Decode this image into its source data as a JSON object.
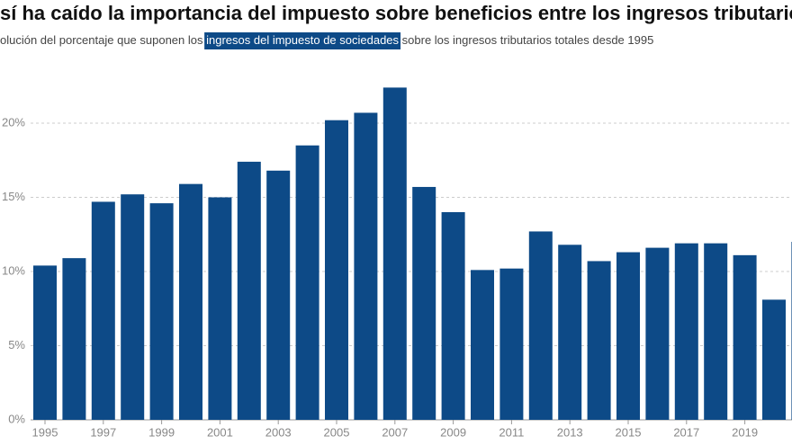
{
  "chart_data": {
    "type": "bar",
    "title": "sí ha caído la importancia del impuesto sobre beneficios entre los ingresos tributarios",
    "subtitle": [
      "olución del porcentaje que suponen los ",
      "ingresos del impuesto de sociedades",
      " sobre los ingresos tributarios totales desde 1995"
    ],
    "categories": [
      "1995",
      null,
      "1997",
      null,
      "1999",
      null,
      "2001",
      null,
      "2003",
      null,
      "2005",
      null,
      "2007",
      null,
      "2009",
      null,
      "2011",
      null,
      "2013",
      null,
      "2015",
      null,
      "2017",
      null,
      "2019",
      null,
      null
    ],
    "values": [
      10.4,
      10.9,
      14.7,
      15.2,
      14.6,
      15.9,
      15.0,
      17.4,
      16.8,
      18.5,
      20.2,
      20.7,
      22.4,
      15.7,
      14.0,
      10.1,
      10.2,
      12.7,
      11.8,
      10.7,
      11.3,
      11.6,
      11.9,
      11.9,
      11.1,
      8.1,
      12.0
    ],
    "color": "#0d4a87",
    "ylim": [
      0,
      22.4
    ],
    "yticks": [
      {
        "value": 0,
        "label": "0%"
      },
      {
        "value": 5,
        "label": "5%"
      },
      {
        "value": 10,
        "label": "10%"
      },
      {
        "value": 15,
        "label": "15%"
      },
      {
        "value": 20,
        "label": "20%"
      }
    ],
    "grid": true
  }
}
